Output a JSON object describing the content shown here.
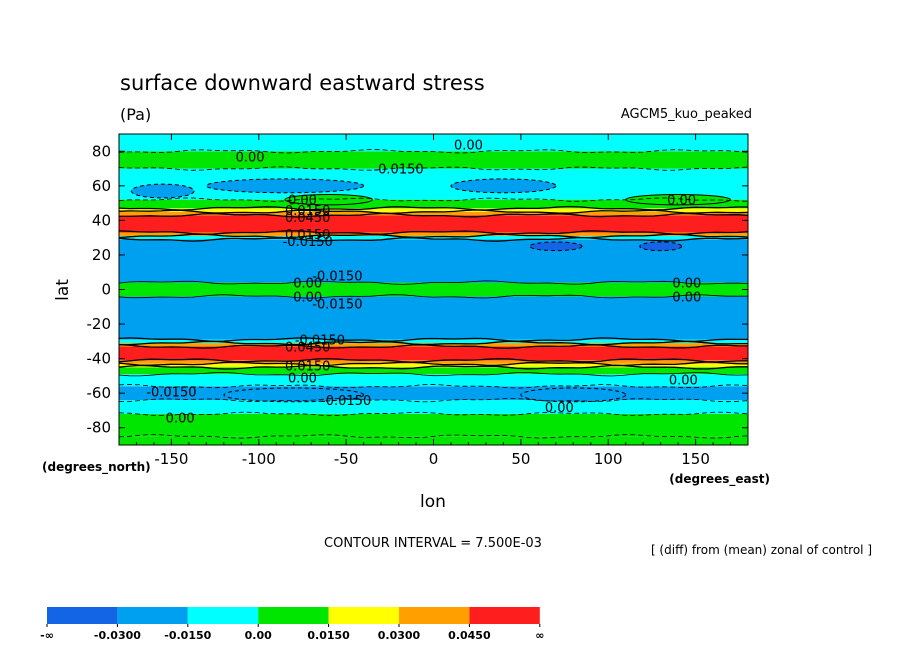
{
  "chart_data": {
    "type": "heatmap",
    "title": "surface downward eastward stress",
    "units": "(Pa)",
    "model_label": "AGCM5_kuo_peaked",
    "xlabel": "lon",
    "ylabel": "lat",
    "x_units": "(degrees_east)",
    "y_units": "(degrees_north)",
    "xlim": [
      -180,
      180
    ],
    "ylim": [
      -90,
      90
    ],
    "x_ticks": [
      -150,
      -100,
      -50,
      0,
      50,
      100,
      150
    ],
    "y_ticks": [
      -80,
      -60,
      -40,
      -20,
      0,
      20,
      40,
      60,
      80
    ],
    "contour_interval_text": "CONTOUR INTERVAL = 7.500E-03",
    "footnote": "[ (diff) from (mean) zonal of control ]",
    "colorbar": {
      "colors": [
        "#1464e6",
        "#00a0f0",
        "#00ffff",
        "#00e600",
        "#ffff00",
        "#ffa000",
        "#ff1e1e"
      ],
      "labels": [
        "-∞",
        "-0.0300",
        "-0.0150",
        "0.00",
        "0.0150",
        "0.0300",
        "0.0450",
        "∞"
      ]
    },
    "bands": [
      {
        "lat_from": -90,
        "lat_to": -85,
        "color_index": 3
      },
      {
        "lat_from": -85,
        "lat_to": -72,
        "color_index": 3
      },
      {
        "lat_from": -72,
        "lat_to": -64,
        "color_index": 2
      },
      {
        "lat_from": -64,
        "lat_to": -56,
        "color_index": 1
      },
      {
        "lat_from": -56,
        "lat_to": -49,
        "color_index": 2
      },
      {
        "lat_from": -49,
        "lat_to": -45,
        "color_index": 3
      },
      {
        "lat_from": -45,
        "lat_to": -43,
        "color_index": 4
      },
      {
        "lat_from": -43,
        "lat_to": -41,
        "color_index": 5
      },
      {
        "lat_from": -41,
        "lat_to": -33,
        "color_index": 6
      },
      {
        "lat_from": -33,
        "lat_to": -31,
        "color_index": 5
      },
      {
        "lat_from": -31,
        "lat_to": -29,
        "color_index": 2
      },
      {
        "lat_from": -29,
        "lat_to": -4,
        "color_index": 1
      },
      {
        "lat_from": -4,
        "lat_to": 4,
        "color_index": 3
      },
      {
        "lat_from": 4,
        "lat_to": 29,
        "color_index": 1
      },
      {
        "lat_from": 29,
        "lat_to": 31,
        "color_index": 2
      },
      {
        "lat_from": 31,
        "lat_to": 33,
        "color_index": 5
      },
      {
        "lat_from": 33,
        "lat_to": 43,
        "color_index": 6
      },
      {
        "lat_from": 43,
        "lat_to": 45,
        "color_index": 5
      },
      {
        "lat_from": 45,
        "lat_to": 47,
        "color_index": 4
      },
      {
        "lat_from": 47,
        "lat_to": 52,
        "color_index": 3
      },
      {
        "lat_from": 52,
        "lat_to": 70,
        "color_index": 2
      },
      {
        "lat_from": 70,
        "lat_to": 80,
        "color_index": 3
      },
      {
        "lat_from": 80,
        "lat_to": 90,
        "color_index": 2
      }
    ],
    "patches": [
      {
        "lon": -85,
        "lat": 60,
        "rlon": 45,
        "rlat": 4,
        "color_index": 1
      },
      {
        "lon": -155,
        "lat": 57,
        "rlon": 18,
        "rlat": 4,
        "color_index": 1
      },
      {
        "lon": 40,
        "lat": 60,
        "rlon": 30,
        "rlat": 4,
        "color_index": 1
      },
      {
        "lon": 70,
        "lat": 25,
        "rlon": 15,
        "rlat": 2.5,
        "color_index": 0
      },
      {
        "lon": 130,
        "lat": 25,
        "rlon": 12,
        "rlat": 2.5,
        "color_index": 0
      },
      {
        "lon": -80,
        "lat": -61,
        "rlon": 40,
        "rlat": 4,
        "color_index": 1
      },
      {
        "lon": 80,
        "lat": -61,
        "rlon": 30,
        "rlat": 4,
        "color_index": 1
      },
      {
        "lon": -60,
        "lat": 52,
        "rlon": 25,
        "rlat": 3,
        "color_index": 3
      },
      {
        "lon": 140,
        "lat": 52,
        "rlon": 30,
        "rlat": 3,
        "color_index": 3
      }
    ],
    "contour_labels": [
      {
        "text": "0.00",
        "lon": 20,
        "lat": 84
      },
      {
        "text": "0.00",
        "lon": -105,
        "lat": 77
      },
      {
        "text": "-0.0150",
        "lon": -20,
        "lat": 70
      },
      {
        "text": "0.00",
        "lon": -75,
        "lat": 52
      },
      {
        "text": "0.0150",
        "lon": -72,
        "lat": 46
      },
      {
        "text": "0.0450",
        "lon": -72,
        "lat": 42
      },
      {
        "text": "0.0150",
        "lon": -72,
        "lat": 32
      },
      {
        "text": "-0.0150",
        "lon": -72,
        "lat": 28
      },
      {
        "text": "0.00",
        "lon": 142,
        "lat": 52
      },
      {
        "text": "-0.0150",
        "lon": -55,
        "lat": 8
      },
      {
        "text": "0.00",
        "lon": -72,
        "lat": 4
      },
      {
        "text": "0.00",
        "lon": -72,
        "lat": -4
      },
      {
        "text": "-0.0150",
        "lon": -55,
        "lat": -8
      },
      {
        "text": "0.00",
        "lon": 145,
        "lat": 4
      },
      {
        "text": "0.00",
        "lon": 145,
        "lat": -4
      },
      {
        "text": "-0.0150",
        "lon": -65,
        "lat": -29
      },
      {
        "text": "0.0450",
        "lon": -72,
        "lat": -33
      },
      {
        "text": "0.0150",
        "lon": -72,
        "lat": -44
      },
      {
        "text": "0.00",
        "lon": -75,
        "lat": -51
      },
      {
        "text": "0.00",
        "lon": 143,
        "lat": -52
      },
      {
        "text": "-0.0150",
        "lon": -150,
        "lat": -59
      },
      {
        "text": "-0.0150",
        "lon": -50,
        "lat": -64
      },
      {
        "text": "0.00",
        "lon": 72,
        "lat": -68
      },
      {
        "text": "0.00",
        "lon": -145,
        "lat": -74
      }
    ]
  }
}
